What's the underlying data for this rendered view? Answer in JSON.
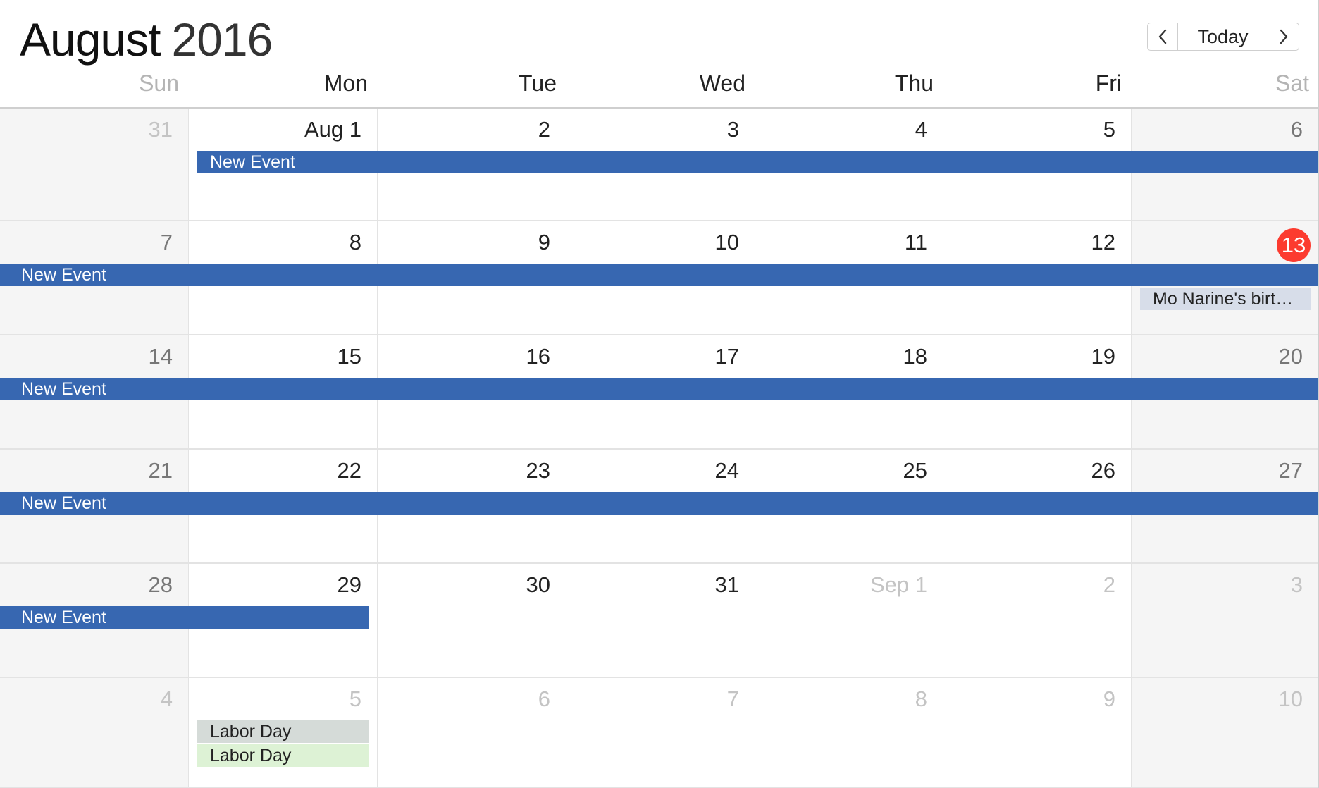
{
  "header": {
    "month": "August",
    "year": "2016",
    "prev_label": "previous-month",
    "today_label": "Today",
    "next_label": "next-month"
  },
  "weekdays": [
    "Sun",
    "Mon",
    "Tue",
    "Wed",
    "Thu",
    "Fri",
    "Sat"
  ],
  "weeks": [
    [
      {
        "label": "31",
        "other": true
      },
      {
        "label": "Aug 1",
        "other": false
      },
      {
        "label": "2",
        "other": false
      },
      {
        "label": "3",
        "other": false
      },
      {
        "label": "4",
        "other": false
      },
      {
        "label": "5",
        "other": false
      },
      {
        "label": "6",
        "other": false
      }
    ],
    [
      {
        "label": "7",
        "other": false
      },
      {
        "label": "8",
        "other": false
      },
      {
        "label": "9",
        "other": false
      },
      {
        "label": "10",
        "other": false
      },
      {
        "label": "11",
        "other": false
      },
      {
        "label": "12",
        "other": false
      },
      {
        "label": "13",
        "other": false,
        "today": true
      }
    ],
    [
      {
        "label": "14",
        "other": false
      },
      {
        "label": "15",
        "other": false
      },
      {
        "label": "16",
        "other": false
      },
      {
        "label": "17",
        "other": false
      },
      {
        "label": "18",
        "other": false
      },
      {
        "label": "19",
        "other": false
      },
      {
        "label": "20",
        "other": false
      }
    ],
    [
      {
        "label": "21",
        "other": false
      },
      {
        "label": "22",
        "other": false
      },
      {
        "label": "23",
        "other": false
      },
      {
        "label": "24",
        "other": false
      },
      {
        "label": "25",
        "other": false
      },
      {
        "label": "26",
        "other": false
      },
      {
        "label": "27",
        "other": false
      }
    ],
    [
      {
        "label": "28",
        "other": false
      },
      {
        "label": "29",
        "other": false
      },
      {
        "label": "30",
        "other": false
      },
      {
        "label": "31",
        "other": false
      },
      {
        "label": "Sep 1",
        "other": true
      },
      {
        "label": "2",
        "other": true
      },
      {
        "label": "3",
        "other": true
      }
    ],
    [
      {
        "label": "4",
        "other": true
      },
      {
        "label": "5",
        "other": true
      },
      {
        "label": "6",
        "other": true
      },
      {
        "label": "7",
        "other": true
      },
      {
        "label": "8",
        "other": true
      },
      {
        "label": "9",
        "other": true
      },
      {
        "label": "10",
        "other": true
      }
    ]
  ],
  "events": [
    {
      "title": "New Event",
      "week": 0,
      "startDay": 1,
      "endDay": 6,
      "kind": "bar",
      "continuesLeft": false
    },
    {
      "title": "New Event",
      "week": 1,
      "startDay": 0,
      "endDay": 6,
      "kind": "bar",
      "continuesLeft": true
    },
    {
      "title": "New Event",
      "week": 2,
      "startDay": 0,
      "endDay": 6,
      "kind": "bar",
      "continuesLeft": true
    },
    {
      "title": "New Event",
      "week": 3,
      "startDay": 0,
      "endDay": 6,
      "kind": "bar",
      "continuesLeft": true
    },
    {
      "title": "New Event",
      "week": 4,
      "startDay": 0,
      "endDay": 1,
      "kind": "bar",
      "continuesLeft": true
    },
    {
      "title": "Mo Narine's birt…",
      "week": 1,
      "startDay": 6,
      "endDay": 6,
      "kind": "bday",
      "slot": 2
    },
    {
      "title": "Labor Day",
      "week": 5,
      "startDay": 1,
      "endDay": 1,
      "kind": "labor1",
      "slot": 1
    },
    {
      "title": "Labor Day",
      "week": 5,
      "startDay": 1,
      "endDay": 1,
      "kind": "labor2",
      "slot": 2
    }
  ],
  "colors": {
    "event_blue": "#3767b1",
    "today_red": "#fc3b2f",
    "birthday_bg": "#d7dde9",
    "labor_day_1_bg": "#d5dbd8",
    "labor_day_2_bg": "#ddf2d5"
  }
}
